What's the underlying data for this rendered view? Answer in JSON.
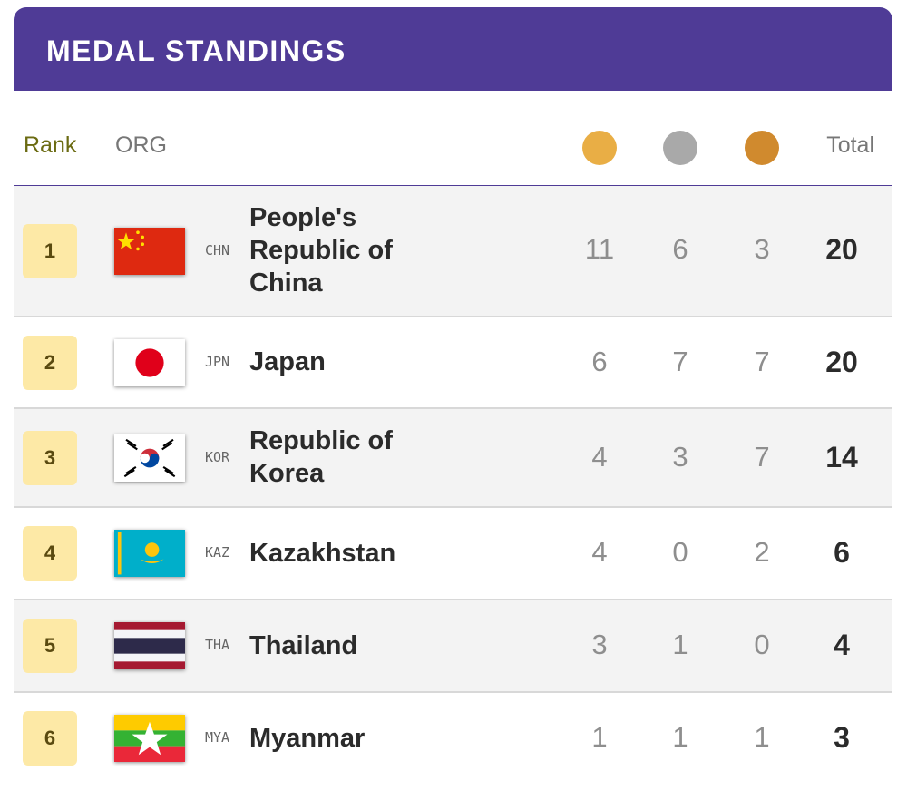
{
  "header": {
    "title": "MEDAL STANDINGS"
  },
  "columns": {
    "rank": "Rank",
    "org": "ORG",
    "total": "Total"
  },
  "medal_colors": {
    "gold": "#e9ae45",
    "silver": "#a9a9a9",
    "bronze": "#d08a2e"
  },
  "rows": [
    {
      "rank": "1",
      "code": "CHN",
      "country": "People's Republic of China",
      "flag": "china-flag",
      "gold": "11",
      "silver": "6",
      "bronze": "3",
      "total": "20"
    },
    {
      "rank": "2",
      "code": "JPN",
      "country": "Japan",
      "flag": "japan-flag",
      "gold": "6",
      "silver": "7",
      "bronze": "7",
      "total": "20"
    },
    {
      "rank": "3",
      "code": "KOR",
      "country": "Republic of Korea",
      "flag": "korea-flag",
      "gold": "4",
      "silver": "3",
      "bronze": "7",
      "total": "14"
    },
    {
      "rank": "4",
      "code": "KAZ",
      "country": "Kazakhstan",
      "flag": "kazakhstan-flag",
      "gold": "4",
      "silver": "0",
      "bronze": "2",
      "total": "6"
    },
    {
      "rank": "5",
      "code": "THA",
      "country": "Thailand",
      "flag": "thailand-flag",
      "gold": "3",
      "silver": "1",
      "bronze": "0",
      "total": "4"
    },
    {
      "rank": "6",
      "code": "MYA",
      "country": "Myanmar",
      "flag": "myanmar-flag",
      "gold": "1",
      "silver": "1",
      "bronze": "1",
      "total": "3"
    }
  ]
}
